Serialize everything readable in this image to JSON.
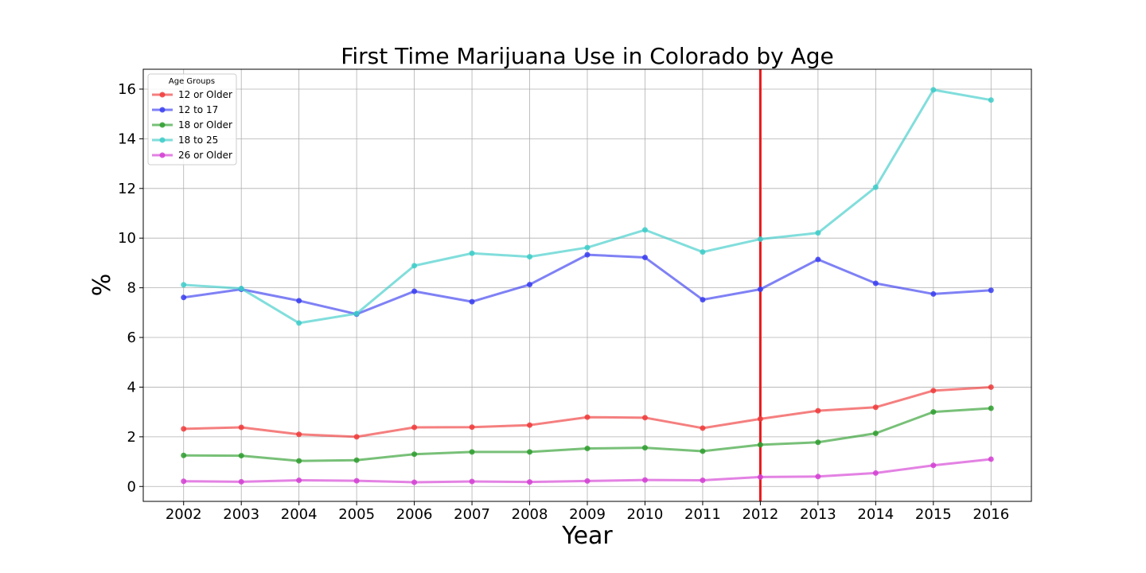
{
  "chart_data": {
    "type": "line",
    "title": "First Time Marijuana Use in Colorado by Age",
    "xlabel": "Year",
    "ylabel": "%",
    "x": [
      2002,
      2003,
      2004,
      2005,
      2006,
      2007,
      2008,
      2009,
      2010,
      2011,
      2012,
      2013,
      2014,
      2015,
      2016
    ],
    "xlim": [
      2001.3,
      2016.7
    ],
    "ylim": [
      -0.6,
      16.8
    ],
    "yticks": [
      0,
      2,
      4,
      6,
      8,
      10,
      12,
      14,
      16
    ],
    "grid": true,
    "legend": {
      "title": "Age Groups",
      "placement": "top-left"
    },
    "vline": {
      "x": 2012,
      "color": "#e8191b"
    },
    "series": [
      {
        "name": "12 or Older",
        "color": "#f03b3b",
        "values": [
          2.32,
          2.38,
          2.1,
          2.0,
          2.38,
          2.39,
          2.47,
          2.79,
          2.77,
          2.35,
          2.72,
          3.05,
          3.19,
          3.86,
          4.0
        ]
      },
      {
        "name": "12 to 17",
        "color": "#3a3ef0",
        "values": [
          7.61,
          7.94,
          7.48,
          6.94,
          7.86,
          7.44,
          8.13,
          9.33,
          9.22,
          7.52,
          7.94,
          9.14,
          8.18,
          7.75,
          7.9
        ]
      },
      {
        "name": "18 or Older",
        "color": "#2f9e2f",
        "values": [
          1.25,
          1.24,
          1.03,
          1.06,
          1.3,
          1.39,
          1.39,
          1.53,
          1.56,
          1.42,
          1.68,
          1.78,
          2.14,
          3.0,
          3.15
        ]
      },
      {
        "name": "18 to 25",
        "color": "#3ecdc9",
        "values": [
          8.12,
          7.97,
          6.58,
          6.96,
          8.89,
          9.39,
          9.25,
          9.62,
          10.33,
          9.44,
          9.96,
          10.21,
          12.05,
          15.97,
          15.56
        ]
      },
      {
        "name": "26 or Older",
        "color": "#d43fd4",
        "values": [
          0.21,
          0.19,
          0.25,
          0.23,
          0.17,
          0.2,
          0.18,
          0.22,
          0.26,
          0.25,
          0.38,
          0.4,
          0.54,
          0.85,
          1.1
        ]
      }
    ]
  }
}
